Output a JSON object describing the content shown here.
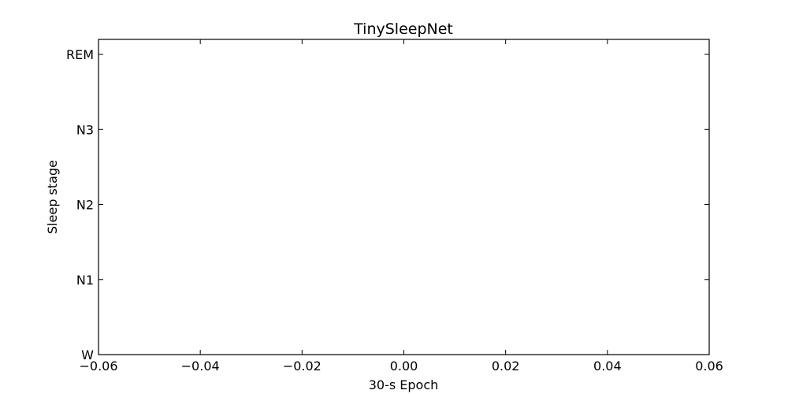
{
  "chart_data": {
    "type": "line",
    "title": "TinySleepNet",
    "xlabel": "30-s Epoch",
    "ylabel": "Sleep stage",
    "xlim": [
      -0.06,
      0.06
    ],
    "x_ticks": [
      -0.06,
      -0.04,
      -0.02,
      0.0,
      0.02,
      0.04,
      0.06
    ],
    "x_tick_labels": [
      "−0.06",
      "−0.04",
      "−0.02",
      "0.00",
      "0.02",
      "0.04",
      "0.06"
    ],
    "ylim": [
      0,
      4.2
    ],
    "y_ticks": [
      0,
      1,
      2,
      3,
      4
    ],
    "y_tick_labels": [
      "W",
      "N1",
      "N2",
      "N3",
      "REM"
    ],
    "grid": false,
    "series": []
  }
}
